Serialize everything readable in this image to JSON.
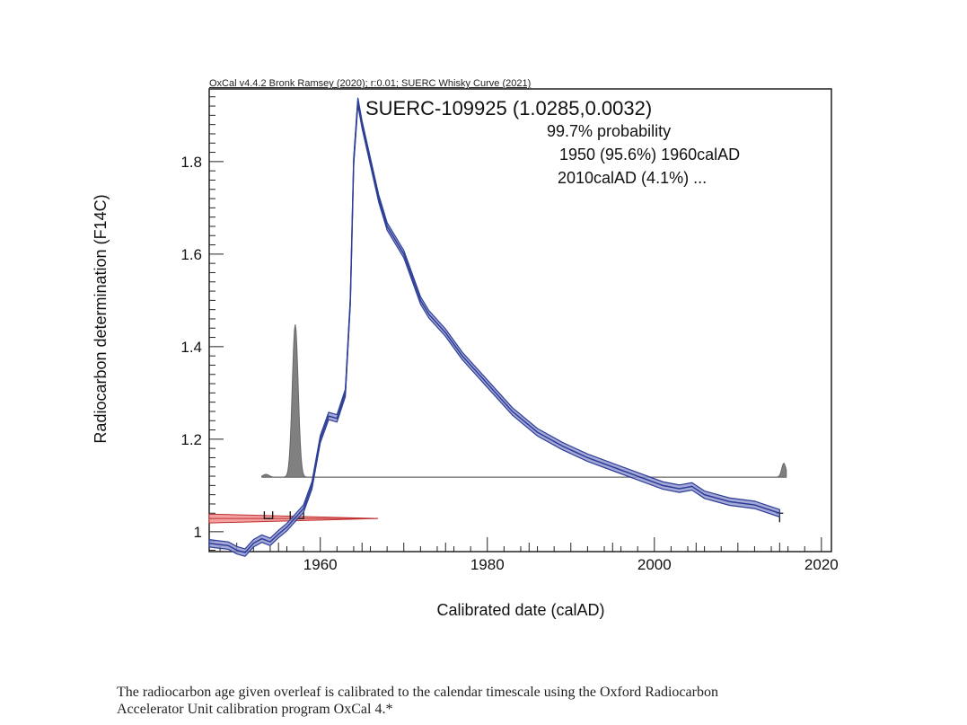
{
  "chart_data": {
    "type": "line",
    "header": "OxCal v4.4.2 Bronk Ramsey (2020); r:0.01; SUERC Whisky Curve (2021)",
    "title": "SUERC-109925 (1.0285,0.0032)",
    "annotations": [
      "99.7% probability",
      "1950 (95.6%) 1960calAD",
      "2010calAD (4.1%) ..."
    ],
    "xlabel": "Calibrated date (calAD)",
    "ylabel": "Radiocarbon determination (F14C)",
    "xlim": [
      1946.7,
      2021.2
    ],
    "ylim": [
      0.957,
      1.957
    ],
    "xticks": [
      1960,
      1980,
      2000,
      2020
    ],
    "yticks": [
      1,
      1.2,
      1.4,
      1.6,
      1.8
    ],
    "grid": false,
    "colors": {
      "curve": "#2c3e95",
      "band": "#8e92d0",
      "measurement": "#e06060",
      "posterior": "#808080"
    },
    "calibration_curve": {
      "x": [
        1946.7,
        1948,
        1949,
        1950,
        1951,
        1952,
        1953,
        1954,
        1955,
        1956,
        1957,
        1958,
        1959,
        1960,
        1961,
        1962,
        1963,
        1963.6,
        1964,
        1964.5,
        1965,
        1966,
        1967,
        1968,
        1970,
        1971,
        1972,
        1973,
        1975,
        1977,
        1980,
        1983,
        1986,
        1989,
        1992,
        1995,
        1998,
        2001,
        2003,
        2004.5,
        2006,
        2009,
        2012,
        2015
      ],
      "y": [
        0.975,
        0.972,
        0.97,
        0.96,
        0.955,
        0.975,
        0.985,
        0.978,
        0.995,
        1.01,
        1.03,
        1.05,
        1.1,
        1.2,
        1.25,
        1.245,
        1.3,
        1.5,
        1.8,
        1.93,
        1.88,
        1.8,
        1.72,
        1.66,
        1.6,
        1.55,
        1.5,
        1.47,
        1.43,
        1.38,
        1.32,
        1.26,
        1.215,
        1.185,
        1.16,
        1.14,
        1.12,
        1.1,
        1.093,
        1.098,
        1.08,
        1.065,
        1.058,
        1.04
      ],
      "band_halfwidth": 0.008
    },
    "measurement": {
      "mean": 1.0285,
      "sigma": 0.0032
    },
    "posterior": {
      "baseline": 1.118,
      "peaks": [
        {
          "x": 1953.5,
          "h": 0.006
        },
        {
          "x": 1957,
          "h": 0.33
        },
        {
          "x": 2015.5,
          "h": 0.03
        }
      ]
    },
    "ranges_995": [
      [
        1953.3,
        1954.3
      ],
      [
        1956.4,
        1958
      ]
    ],
    "ranges_tail": [
      2015
    ]
  },
  "caption": {
    "line1": "The radiocarbon age given overleaf is calibrated to the calendar timescale using the Oxford Radiocarbon",
    "line2": "Accelerator Unit calibration program OxCal 4.*"
  }
}
